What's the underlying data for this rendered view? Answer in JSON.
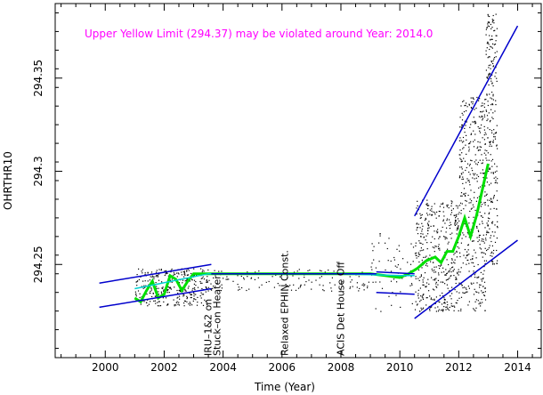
{
  "chart_data": {
    "type": "scatter",
    "xlabel": "Time (Year)",
    "ylabel": "OHRTHR10",
    "xlim": [
      1998.3,
      2014.8
    ],
    "ylim": [
      294.2,
      294.39
    ],
    "x_ticks": [
      2000,
      2002,
      2004,
      2006,
      2008,
      2010,
      2012,
      2014
    ],
    "y_ticks": [
      294.25,
      294.3,
      294.35
    ],
    "y_tick_labels": [
      "294.25",
      "294.3",
      "294.35"
    ],
    "grid": false,
    "warning": "Upper Yellow  Limit (294.37) may be violated around Year: 2014.0",
    "events": [
      {
        "year": 2003.6,
        "label": "IRU–1&2 on"
      },
      {
        "year": 2003.9,
        "label": "Stuck–on Heater"
      },
      {
        "year": 2006.2,
        "label": "Relaxed EPHIN Const."
      },
      {
        "year": 2008.1,
        "label": "ACIS Det House Off"
      }
    ],
    "series": [
      {
        "role": "moving-average",
        "color": "#00e000",
        "x": [
          2001.0,
          2001.2,
          2001.4,
          2001.6,
          2001.8,
          2002.0,
          2002.2,
          2002.4,
          2002.6,
          2002.8,
          2003.0,
          2003.2,
          2003.5,
          2004.0,
          2005.0,
          2006.0,
          2007.0,
          2008.0,
          2009.0,
          2009.5,
          2010.0,
          2010.3,
          2010.6,
          2010.9,
          2011.2,
          2011.4,
          2011.6,
          2011.8,
          2012.0,
          2012.2,
          2012.4,
          2012.6,
          2012.8,
          2013.0
        ],
        "y": [
          294.232,
          294.23,
          294.236,
          294.241,
          294.232,
          294.234,
          294.244,
          294.242,
          294.236,
          294.241,
          294.245,
          294.245,
          294.245,
          294.245,
          294.245,
          294.245,
          294.245,
          294.245,
          294.245,
          294.244,
          294.243,
          294.245,
          294.248,
          294.252,
          294.254,
          294.251,
          294.257,
          294.257,
          294.265,
          294.275,
          294.265,
          294.276,
          294.29,
          294.304
        ]
      },
      {
        "role": "trend-fit",
        "color": "#00d0d0",
        "x": [
          2001.0,
          2003.5,
          2004.0,
          2006.0,
          2008.0,
          2010.0,
          2010.5
        ],
        "y": [
          294.237,
          294.245,
          294.245,
          294.245,
          294.245,
          294.244,
          294.244
        ]
      },
      {
        "role": "upper-envelope-early",
        "color": "#0000cc",
        "x": [
          1999.8,
          2003.6
        ],
        "y": [
          294.24,
          294.25
        ]
      },
      {
        "role": "lower-envelope-early",
        "color": "#0000cc",
        "x": [
          1999.8,
          2003.6
        ],
        "y": [
          294.227,
          294.237
        ]
      },
      {
        "role": "upper-envelope-mid",
        "color": "#0000cc",
        "x": [
          2003.6,
          2009.2
        ],
        "y": [
          294.245,
          294.245
        ]
      },
      {
        "role": "lower-envelope-mid",
        "color": "#0000cc",
        "x": [
          2003.6,
          2009.2
        ],
        "y": [
          294.245,
          294.245
        ]
      },
      {
        "role": "upper-envelope-2010",
        "color": "#0000cc",
        "x": [
          2009.2,
          2010.5
        ],
        "y": [
          294.246,
          294.245
        ]
      },
      {
        "role": "lower-envelope-2010",
        "color": "#0000cc",
        "x": [
          2009.2,
          2010.5
        ],
        "y": [
          294.235,
          294.234
        ]
      },
      {
        "role": "upper-envelope-late",
        "color": "#0000cc",
        "x": [
          2010.5,
          2014.0
        ],
        "y": [
          294.276,
          294.378
        ]
      },
      {
        "role": "lower-envelope-late",
        "color": "#0000cc",
        "x": [
          2010.5,
          2014.0
        ],
        "y": [
          294.221,
          294.263
        ]
      }
    ],
    "scatter_clusters": [
      {
        "x_range": [
          2001.0,
          2003.5
        ],
        "y_range": [
          294.228,
          294.248
        ],
        "count": 320
      },
      {
        "x_range": [
          2003.5,
          2009.2
        ],
        "y_range": [
          294.236,
          294.248
        ],
        "count": 140
      },
      {
        "x_range": [
          2009.0,
          2010.5
        ],
        "y_range": [
          294.225,
          294.268
        ],
        "count": 60
      },
      {
        "x_range": [
          2010.5,
          2012.0
        ],
        "y_range": [
          294.225,
          294.285
        ],
        "count": 420
      },
      {
        "x_range": [
          2012.0,
          2012.9
        ],
        "y_range": [
          294.225,
          294.34
        ],
        "count": 420
      },
      {
        "x_range": [
          2012.9,
          2013.3
        ],
        "y_range": [
          294.25,
          294.385
        ],
        "count": 260
      }
    ]
  }
}
